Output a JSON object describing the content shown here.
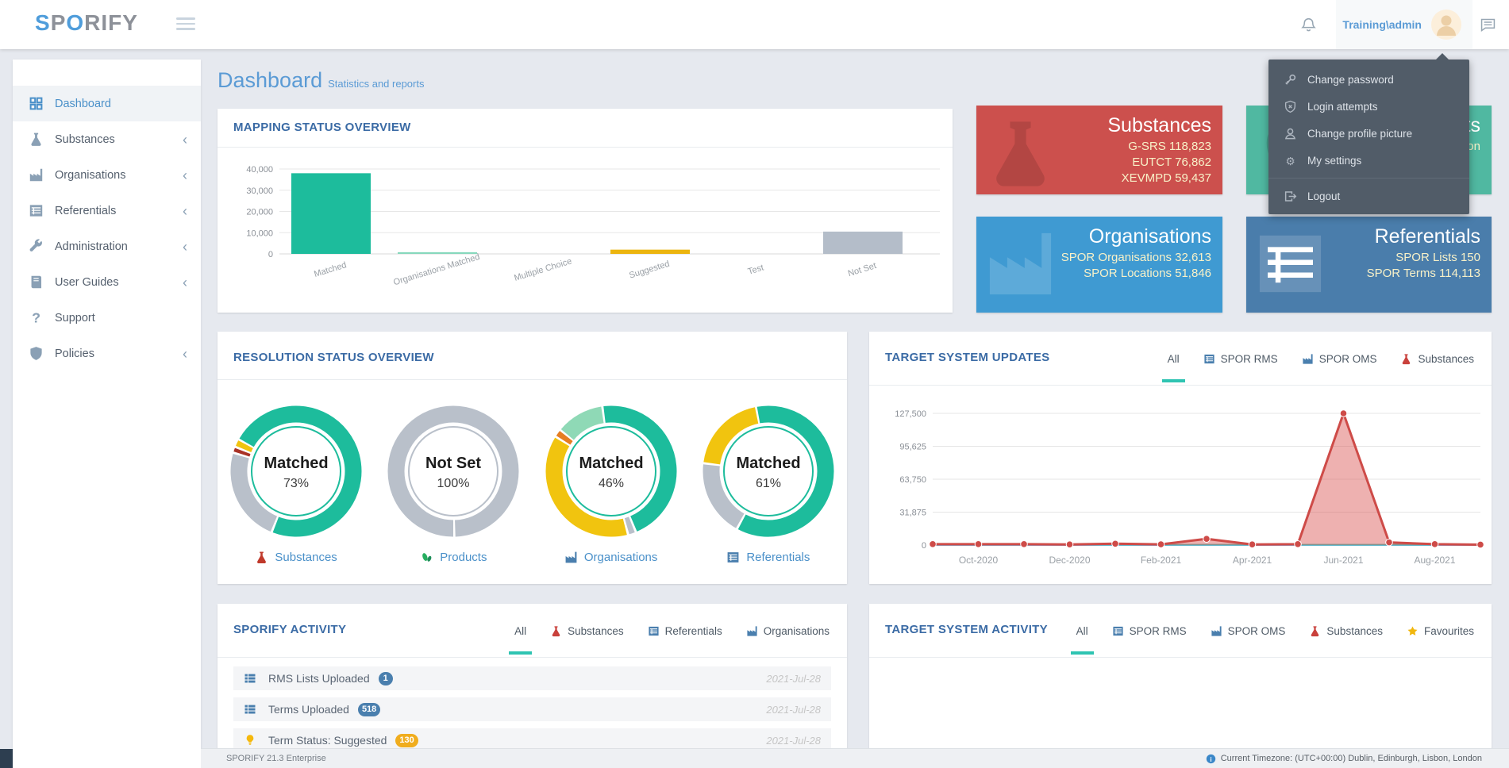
{
  "navbar": {
    "logo_parts": [
      {
        "text": "S",
        "color": "#4f9ddb"
      },
      {
        "text": "P",
        "color": "#8d9199"
      },
      {
        "text": "O",
        "color": "#4f9ddb"
      },
      {
        "text": "RIFY",
        "color": "#8d9199"
      }
    ],
    "user_label": "Training\\admin"
  },
  "user_menu": {
    "items": [
      {
        "icon": "key",
        "label": "Change password"
      },
      {
        "icon": "shieldx",
        "label": "Login attempts"
      },
      {
        "icon": "user",
        "label": "Change profile picture"
      },
      {
        "icon": "gear",
        "label": "My settings"
      }
    ],
    "logout": {
      "icon": "logout",
      "label": "Logout"
    }
  },
  "sidebar": {
    "items": [
      {
        "icon": "grid",
        "label": "Dashboard",
        "active": true,
        "chevron": false
      },
      {
        "icon": "flask",
        "label": "Substances",
        "active": false,
        "chevron": true
      },
      {
        "icon": "factory",
        "label": "Organisations",
        "active": false,
        "chevron": true
      },
      {
        "icon": "list",
        "label": "Referentials",
        "active": false,
        "chevron": true
      },
      {
        "icon": "wrench",
        "label": "Administration",
        "active": false,
        "chevron": true
      },
      {
        "icon": "book",
        "label": "User Guides",
        "active": false,
        "chevron": true
      },
      {
        "icon": "question",
        "label": "Support",
        "active": false,
        "chevron": false
      },
      {
        "icon": "shield",
        "label": "Policies",
        "active": false,
        "chevron": true
      }
    ]
  },
  "page": {
    "title": "Dashboard",
    "subtitle": "Statistics and reports"
  },
  "stat_cards": [
    {
      "key": "substances",
      "title": "Substances",
      "lines": [
        "G-SRS 118,823",
        "EUTCT 76,862",
        "XEVMPD 59,437"
      ],
      "bg": "#cc504d",
      "icon": "flask",
      "wm": "dark"
    },
    {
      "key": "products",
      "title": "Products",
      "lines": [
        "Coming soon"
      ],
      "bg": "#50b8a1",
      "icon": "pills",
      "wm": "dark"
    },
    {
      "key": "organisations",
      "title": "Organisations",
      "lines": [
        "SPOR Organisations 32,613",
        "SPOR Locations 51,846"
      ],
      "bg": "#3f9ad2",
      "icon": "factory",
      "wm": "light"
    },
    {
      "key": "referentials",
      "title": "Referentials",
      "lines": [
        "SPOR Lists 150",
        "SPOR Terms 114,113"
      ],
      "bg": "#4a7dab",
      "icon": "list",
      "wm": "light"
    }
  ],
  "cards": {
    "mapping": {
      "title": "MAPPING STATUS OVERVIEW"
    },
    "resolution": {
      "title": "RESOLUTION STATUS OVERVIEW"
    },
    "updates": {
      "title": "TARGET SYSTEM UPDATES",
      "tabs": [
        {
          "label": "All",
          "active": true
        },
        {
          "label": "SPOR RMS",
          "icon": "list",
          "icon_color": "#4a7fae"
        },
        {
          "label": "SPOR OMS",
          "icon": "factory",
          "icon_color": "#4a7fae"
        },
        {
          "label": "Substances",
          "icon": "flask",
          "icon_color": "#c9413c"
        }
      ]
    },
    "sporify_activity": {
      "title": "SPORIFY ACTIVITY",
      "tabs": [
        {
          "label": "All",
          "active": true
        },
        {
          "label": "Substances",
          "icon": "flask",
          "icon_color": "#c9413c"
        },
        {
          "label": "Referentials",
          "icon": "list",
          "icon_color": "#4a7fae"
        },
        {
          "label": "Organisations",
          "icon": "factory",
          "icon_color": "#4a7fae"
        }
      ],
      "rows": [
        {
          "icon": "grid2",
          "icon_color": "#4a7fae",
          "label": "RMS Lists Uploaded",
          "badge": "1",
          "badge_color": "#4a7fae",
          "date": "2021-Jul-28"
        },
        {
          "icon": "grid2",
          "icon_color": "#4a7fae",
          "label": "Terms Uploaded",
          "badge": "518",
          "badge_color": "#4a7fae",
          "date": "2021-Jul-28"
        },
        {
          "icon": "bulb",
          "icon_color": "#f5b80c",
          "label": "Term Status: Suggested",
          "badge": "130",
          "badge_color": "#f0ad1e",
          "date": "2021-Jul-28"
        }
      ]
    },
    "target_activity": {
      "title": "TARGET SYSTEM ACTIVITY",
      "tabs": [
        {
          "label": "All",
          "active": true
        },
        {
          "label": "SPOR RMS",
          "icon": "list",
          "icon_color": "#4a7fae"
        },
        {
          "label": "SPOR OMS",
          "icon": "factory",
          "icon_color": "#4a7fae"
        },
        {
          "label": "Substances",
          "icon": "flask",
          "icon_color": "#c9413c"
        },
        {
          "label": "Favourites",
          "icon": "star",
          "icon_color": "#f1b70e"
        }
      ]
    }
  },
  "chart_data": [
    {
      "id": "mapping_status_overview",
      "type": "bar",
      "title": "MAPPING STATUS OVERVIEW",
      "categories": [
        "Matched",
        "Organisations Matched",
        "Multiple Choice",
        "Suggested",
        "Test",
        "Not Set"
      ],
      "values": [
        38000,
        800,
        0,
        2000,
        0,
        10500
      ],
      "bar_colors": [
        "#1dbc9c",
        "#87d8bd",
        "#cfd4da",
        "#ecb50f",
        "#cfd4da",
        "#b4bdc9"
      ],
      "xlabel": "",
      "ylabel": "",
      "ylim": [
        0,
        40000
      ],
      "yticks": [
        0,
        10000,
        20000,
        30000,
        40000
      ],
      "ytick_labels": [
        "0",
        "10,000",
        "20,000",
        "30,000",
        "40,000"
      ],
      "grid": true,
      "legend": false
    },
    {
      "id": "resolution_status_overview",
      "type": "pie",
      "subtype": "donut-set",
      "title": "RESOLUTION STATUS OVERVIEW",
      "donuts": [
        {
          "label": "Substances",
          "icon": "flask",
          "icon_color": "#c0392b",
          "center_label": "Matched",
          "center_value": "73%",
          "start_deg": -60,
          "ring_color": "#1dbc9c",
          "segments": [
            {
              "name": "Matched",
              "color": "#1dbc9c",
              "pct": 73
            },
            {
              "name": "Not Set",
              "color": "#b9c0ca",
              "pct": 23.5
            },
            {
              "name": "Error",
              "color": "#a93226",
              "pct": 1.5
            },
            {
              "name": "Suggested",
              "color": "#f1c40f",
              "pct": 2
            }
          ]
        },
        {
          "label": "Products",
          "icon": "pills",
          "icon_color": "#27ae60",
          "center_label": "Not Set",
          "center_value": "100%",
          "start_deg": 180,
          "ring_color": "#b9c0ca",
          "segments": [
            {
              "name": "Not Set",
              "color": "#b9c0ca",
              "pct": 100
            }
          ]
        },
        {
          "label": "Organisations",
          "icon": "factory",
          "icon_color": "#4a7fae",
          "center_label": "Matched",
          "center_value": "46%",
          "start_deg": -50,
          "ring_color": "#1dbc9c",
          "segments": [
            {
              "name": "Org Matched",
              "color": "#8fd9b6",
              "pct": 12
            },
            {
              "name": "Matched",
              "color": "#1dbc9c",
              "pct": 46
            },
            {
              "name": "Not Set",
              "color": "#b9c0ca",
              "pct": 2
            },
            {
              "name": "Suggested",
              "color": "#f1c40f",
              "pct": 38
            },
            {
              "name": "Multiple",
              "color": "#e67e22",
              "pct": 2
            }
          ]
        },
        {
          "label": "Referentials",
          "icon": "list",
          "icon_color": "#4a7fae",
          "center_label": "Matched",
          "center_value": "61%",
          "start_deg": -10,
          "ring_color": "#1dbc9c",
          "segments": [
            {
              "name": "Matched",
              "color": "#1dbc9c",
              "pct": 61
            },
            {
              "name": "Not Set",
              "color": "#b9c0ca",
              "pct": 19
            },
            {
              "name": "Suggested",
              "color": "#f1c40f",
              "pct": 20
            }
          ]
        }
      ]
    },
    {
      "id": "target_system_updates",
      "type": "area",
      "title": "TARGET SYSTEM UPDATES",
      "x": [
        "Sep-2020",
        "Oct-2020",
        "Nov-2020",
        "Dec-2020",
        "Jan-2021",
        "Feb-2021",
        "Mar-2021",
        "Apr-2021",
        "May-2021",
        "Jun-2021",
        "Jul-2021",
        "Aug-2021",
        "Sep-2021"
      ],
      "x_tick_indices": [
        1,
        3,
        5,
        7,
        9,
        11
      ],
      "x_tick_labels": [
        "Oct-2020",
        "Dec-2020",
        "Feb-2021",
        "Apr-2021",
        "Jun-2021",
        "Aug-2021"
      ],
      "ylim": [
        0,
        127500
      ],
      "yticks": [
        0,
        31875,
        63750,
        95625,
        127500
      ],
      "ytick_labels": [
        "0",
        "31,875",
        "63,750",
        "95,625",
        "127,500"
      ],
      "series": [
        {
          "name": "updates",
          "color": "#ce4b48",
          "fill": "rgba(217,83,79,0.45)",
          "markers": true,
          "values": [
            900,
            900,
            900,
            600,
            1300,
            700,
            6000,
            600,
            900,
            127500,
            2600,
            900,
            400
          ]
        },
        {
          "name": "flat-teal",
          "color": "#3ec9c0",
          "markers": false,
          "values": [
            250,
            250,
            250,
            250,
            250,
            250,
            250,
            250,
            250,
            250,
            250,
            250,
            250
          ]
        },
        {
          "name": "flat-purple",
          "color": "#8678d6",
          "markers": false,
          "values": [
            80,
            80,
            80,
            80,
            80,
            80,
            80,
            80,
            80,
            80,
            80,
            80,
            80
          ]
        }
      ],
      "grid": true,
      "legend": false
    }
  ],
  "footer": {
    "left": "SPORIFY 21.3 Enterprise",
    "right": "Current Timezone: (UTC+00:00) Dublin, Edinburgh, Lisbon, London"
  }
}
